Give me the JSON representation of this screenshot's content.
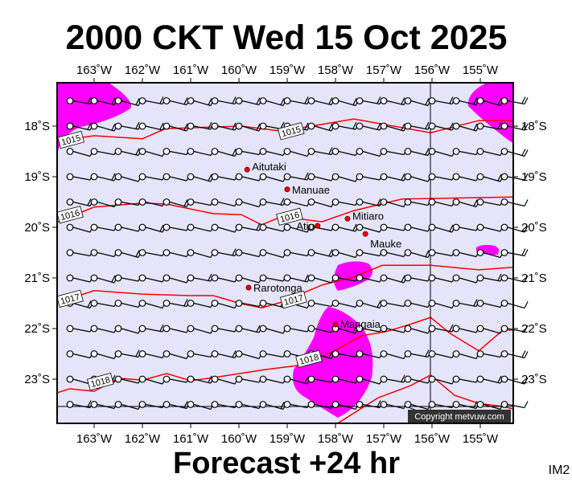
{
  "header": {
    "title": "2000 CKT Wed 15 Oct 2025"
  },
  "footer": {
    "subtitle": "Forecast +24 hr",
    "image_code": "IM2",
    "copyright": "Copyright metvuw.com"
  },
  "map": {
    "lon_range": [
      -163.77,
      -154.32
    ],
    "lat_range": [
      -23.87,
      -17.27
    ],
    "lon_ticks": [
      {
        "value": -163,
        "label": "163˚W"
      },
      {
        "value": -162,
        "label": "162˚W"
      },
      {
        "value": -161,
        "label": "161˚W"
      },
      {
        "value": -160,
        "label": "160˚W"
      },
      {
        "value": -159,
        "label": "159˚W"
      },
      {
        "value": -158,
        "label": "158˚W"
      },
      {
        "value": -157,
        "label": "157˚W"
      },
      {
        "value": -156,
        "label": "156˚W"
      },
      {
        "value": -155,
        "label": "155˚W"
      }
    ],
    "lat_ticks": [
      {
        "value": -18,
        "label": "18˚S"
      },
      {
        "value": -19,
        "label": "19˚S"
      },
      {
        "value": -20,
        "label": "20˚S"
      },
      {
        "value": -21,
        "label": "21˚S"
      },
      {
        "value": -22,
        "label": "22˚S"
      },
      {
        "value": -23,
        "label": "23˚S"
      }
    ],
    "colors": {
      "ocean": "#e4e4fa",
      "isobar": "#ff0000",
      "rain": "#ff00ff",
      "place": "#e00000"
    },
    "wind_grid": {
      "lon_start": -163.5,
      "lon_end": -154.5,
      "lat_start": -17.5,
      "lat_end": -23.5,
      "step": 0.5,
      "direction": "easterly"
    },
    "places": [
      {
        "name": "Aitutaki",
        "lon": -159.83,
        "lat": -18.86
      },
      {
        "name": "Manuae",
        "lon": -159.0,
        "lat": -19.25
      },
      {
        "name": "Mitiaro",
        "lon": -157.75,
        "lat": -19.83
      },
      {
        "name": "Atiu",
        "lon": -158.37,
        "lat": -19.97
      },
      {
        "name": "Mauke",
        "lon": -157.38,
        "lat": -20.13
      },
      {
        "name": "Rarotonga",
        "lon": -159.8,
        "lat": -21.19
      },
      {
        "name": "Mangaia",
        "lon": -158.0,
        "lat": -21.92
      }
    ],
    "isobars": [
      {
        "hpa": "1015",
        "points": [
          [
            -163.77,
            -18.29
          ],
          [
            -163,
            -18.19
          ],
          [
            -162,
            -18.25
          ],
          [
            -161.52,
            -18.05
          ],
          [
            -159.95,
            -18.0
          ],
          [
            -159.53,
            -18.05
          ],
          [
            -159.12,
            -18.1
          ],
          [
            -157.62,
            -17.86
          ],
          [
            -156.03,
            -18.13
          ],
          [
            -155.03,
            -17.89
          ],
          [
            -154.32,
            -17.89
          ]
        ],
        "labels": [
          [
            -163.48,
            -18.27
          ],
          [
            -158.92,
            -18.1
          ]
        ]
      },
      {
        "hpa": "1016",
        "points": [
          [
            -163.77,
            -19.9
          ],
          [
            -163,
            -19.6
          ],
          [
            -162,
            -19.52
          ],
          [
            -161.5,
            -19.54
          ],
          [
            -160.53,
            -19.73
          ],
          [
            -159.95,
            -19.75
          ],
          [
            -159.53,
            -19.95
          ],
          [
            -159.12,
            -19.79
          ],
          [
            -158.28,
            -19.89
          ],
          [
            -157.62,
            -19.67
          ],
          [
            -156.62,
            -19.44
          ],
          [
            -154.32,
            -19.4
          ]
        ],
        "labels": [
          [
            -163.5,
            -19.75
          ],
          [
            -158.95,
            -19.79
          ]
        ]
      },
      {
        "hpa": "1017",
        "points": [
          [
            -163.77,
            -21.49
          ],
          [
            -163,
            -21.25
          ],
          [
            -162,
            -21.32
          ],
          [
            -161,
            -21.35
          ],
          [
            -160.53,
            -21.35
          ],
          [
            -159.95,
            -21.51
          ],
          [
            -159.53,
            -21.59
          ],
          [
            -159.12,
            -21.48
          ],
          [
            -158.28,
            -21.14
          ],
          [
            -157.62,
            -20.98
          ],
          [
            -157.03,
            -20.75
          ],
          [
            -156.03,
            -20.75
          ],
          [
            -155.03,
            -20.84
          ],
          [
            -154.32,
            -20.79
          ]
        ],
        "labels": [
          [
            -163.5,
            -21.41
          ],
          [
            -158.87,
            -21.43
          ]
        ]
      },
      {
        "hpa": "1018",
        "points": [
          [
            -163.77,
            -23.27
          ],
          [
            -163.5,
            -23.19
          ],
          [
            -163,
            -23.24
          ],
          [
            -162.5,
            -22.98
          ],
          [
            -162,
            -23.02
          ],
          [
            -161.5,
            -22.89
          ],
          [
            -161,
            -23.03
          ],
          [
            -160.53,
            -22.97
          ],
          [
            -159.45,
            -22.81
          ],
          [
            -158.78,
            -22.73
          ],
          [
            -158.12,
            -22.49
          ],
          [
            -157.45,
            -22.14
          ],
          [
            -156.95,
            -22.06
          ],
          [
            -156.53,
            -21.94
          ],
          [
            -156.03,
            -21.78
          ],
          [
            -155.62,
            -22.1
          ],
          [
            -155.03,
            -22.44
          ],
          [
            -154.53,
            -22.03
          ],
          [
            -154.32,
            -22.03
          ]
        ],
        "labels": [
          [
            -158.55,
            -22.6
          ],
          [
            -162.87,
            -23.05
          ]
        ]
      },
      {
        "hpa": "",
        "points": [
          [
            -157.95,
            -23.87
          ],
          [
            -157.12,
            -23.37
          ],
          [
            -156.45,
            -23.13
          ],
          [
            -156.03,
            -22.92
          ],
          [
            -155.53,
            -23.32
          ],
          [
            -155.03,
            -23.48
          ],
          [
            -154.53,
            -23.54
          ],
          [
            -154.32,
            -23.59
          ]
        ],
        "labels": []
      }
    ]
  }
}
